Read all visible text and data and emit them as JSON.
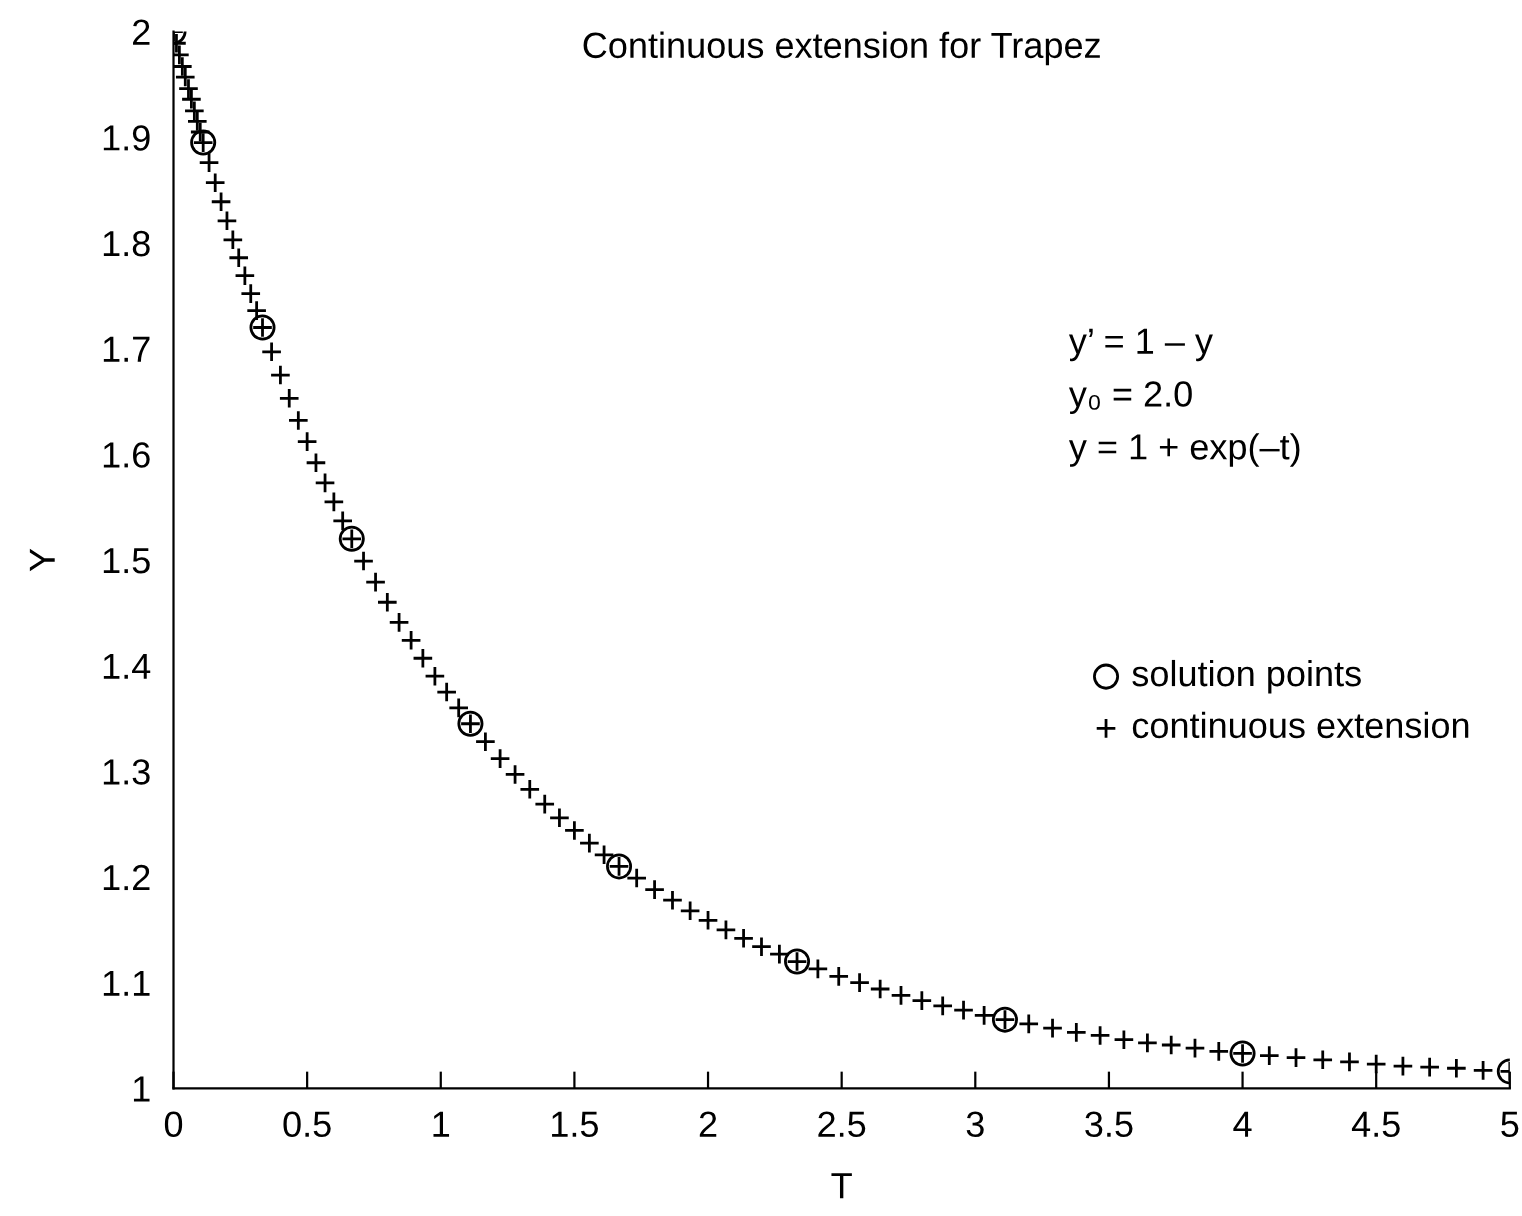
{
  "chart_data": {
    "type": "scatter",
    "title": "Continuous extension for Trapez",
    "xlabel": "T",
    "ylabel": "Y",
    "annotations": [
      "y’ = 1 – y",
      "y₀ = 2.0",
      "y = 1 + exp(–t)"
    ],
    "xlim": [
      0,
      5
    ],
    "ylim": [
      1,
      2
    ],
    "xticks": [
      0,
      0.5,
      1,
      1.5,
      2,
      2.5,
      3,
      3.5,
      4,
      4.5,
      5
    ],
    "yticks": [
      1,
      1.1,
      1.2,
      1.3,
      1.4,
      1.5,
      1.6,
      1.7,
      1.8,
      1.9,
      2
    ],
    "grid": false,
    "legend": "right",
    "series": [
      {
        "name": "solution points",
        "color": "#000000",
        "marker": "circle",
        "x": [
          0,
          0.111,
          0.333,
          0.667,
          1.111,
          1.667,
          2.333,
          3.111,
          4,
          5
        ],
        "values": [
          2,
          1.895,
          1.72,
          1.52,
          1.345,
          1.21,
          1.12,
          1.065,
          1.033,
          1.016
        ]
      },
      {
        "name": "continuous extension",
        "color": "#000000",
        "marker": "cross",
        "x": [
          0,
          0.011,
          0.022,
          0.033,
          0.044,
          0.056,
          0.067,
          0.078,
          0.089,
          0.1,
          0.111,
          0.133,
          0.156,
          0.178,
          0.2,
          0.222,
          0.244,
          0.267,
          0.289,
          0.311,
          0.333,
          0.367,
          0.4,
          0.433,
          0.467,
          0.5,
          0.533,
          0.567,
          0.6,
          0.633,
          0.667,
          0.711,
          0.756,
          0.8,
          0.844,
          0.889,
          0.933,
          0.978,
          1.022,
          1.067,
          1.111,
          1.167,
          1.222,
          1.278,
          1.333,
          1.389,
          1.444,
          1.5,
          1.556,
          1.611,
          1.667,
          1.733,
          1.8,
          1.867,
          1.933,
          2,
          2.067,
          2.133,
          2.2,
          2.267,
          2.333,
          2.411,
          2.489,
          2.567,
          2.644,
          2.722,
          2.8,
          2.878,
          2.956,
          3.033,
          3.111,
          3.2,
          3.289,
          3.378,
          3.467,
          3.556,
          3.644,
          3.733,
          3.822,
          3.911,
          4,
          4.1,
          4.2,
          4.3,
          4.4,
          4.5,
          4.6,
          4.7,
          4.8,
          4.9,
          5
        ],
        "values": [
          2,
          1.989,
          1.978,
          1.967,
          1.957,
          1.946,
          1.936,
          1.925,
          1.915,
          1.905,
          1.895,
          1.876,
          1.857,
          1.839,
          1.821,
          1.803,
          1.786,
          1.769,
          1.752,
          1.736,
          1.72,
          1.697,
          1.675,
          1.653,
          1.632,
          1.612,
          1.592,
          1.573,
          1.555,
          1.537,
          1.52,
          1.499,
          1.479,
          1.46,
          1.441,
          1.424,
          1.407,
          1.39,
          1.375,
          1.36,
          1.345,
          1.328,
          1.312,
          1.297,
          1.283,
          1.269,
          1.256,
          1.244,
          1.232,
          1.221,
          1.21,
          1.199,
          1.188,
          1.178,
          1.168,
          1.159,
          1.15,
          1.142,
          1.134,
          1.127,
          1.12,
          1.113,
          1.106,
          1.1,
          1.094,
          1.088,
          1.083,
          1.078,
          1.074,
          1.069,
          1.065,
          1.061,
          1.057,
          1.053,
          1.05,
          1.046,
          1.043,
          1.041,
          1.038,
          1.035,
          1.033,
          1.031,
          1.029,
          1.027,
          1.025,
          1.023,
          1.021,
          1.02,
          1.019,
          1.017,
          1.016
        ]
      }
    ]
  }
}
